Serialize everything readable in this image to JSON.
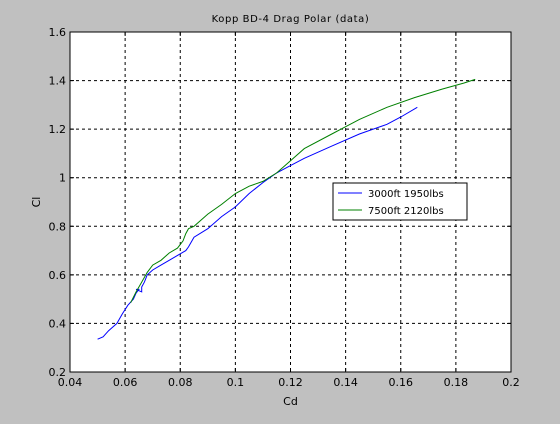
{
  "chart_data": {
    "type": "line",
    "title": "Kopp BD-4 Drag Polar (data)",
    "xlabel": "Cd",
    "ylabel": "Cl",
    "xlim": [
      0.04,
      0.2
    ],
    "ylim": [
      0.2,
      1.6
    ],
    "xticks": [
      0.04,
      0.06,
      0.08,
      0.1,
      0.12,
      0.14,
      0.16,
      0.18,
      0.2
    ],
    "xtick_labels": [
      "0.04",
      "0.06",
      "0.08",
      "0.1",
      "0.12",
      "0.14",
      "0.16",
      "0.18",
      "0.2"
    ],
    "yticks": [
      0.2,
      0.4,
      0.6,
      0.8,
      1.0,
      1.2,
      1.4,
      1.6
    ],
    "ytick_labels": [
      "0.2",
      "0.4",
      "0.6",
      "0.8",
      "1",
      "1.2",
      "1.4",
      "1.6"
    ],
    "grid": true,
    "grid_style": "dashed",
    "legend_position": "right",
    "background": "#c0c0c0",
    "axes_background": "#ffffff",
    "series": [
      {
        "name": "3000ft 1950lbs",
        "color": "#0000ff",
        "x": [
          0.05,
          0.052,
          0.054,
          0.057,
          0.059,
          0.061,
          0.063,
          0.064,
          0.065,
          0.064,
          0.066,
          0.066,
          0.067,
          0.068,
          0.07,
          0.073,
          0.076,
          0.079,
          0.082,
          0.083,
          0.085,
          0.09,
          0.095,
          0.1,
          0.105,
          0.11,
          0.115,
          0.12,
          0.125,
          0.135,
          0.145,
          0.155,
          0.16,
          0.166
        ],
        "y": [
          0.335,
          0.345,
          0.37,
          0.4,
          0.44,
          0.475,
          0.5,
          0.525,
          0.54,
          0.54,
          0.53,
          0.55,
          0.57,
          0.6,
          0.62,
          0.64,
          0.66,
          0.68,
          0.7,
          0.715,
          0.755,
          0.79,
          0.84,
          0.88,
          0.935,
          0.98,
          1.02,
          1.05,
          1.08,
          1.13,
          1.18,
          1.22,
          1.25,
          1.29
        ]
      },
      {
        "name": "7500ft 2120lbs",
        "color": "#008000",
        "x": [
          0.062,
          0.064,
          0.066,
          0.068,
          0.07,
          0.073,
          0.076,
          0.079,
          0.081,
          0.082,
          0.083,
          0.085,
          0.09,
          0.095,
          0.1,
          0.105,
          0.11,
          0.115,
          0.12,
          0.125,
          0.135,
          0.145,
          0.155,
          0.165,
          0.175,
          0.183,
          0.187
        ],
        "y": [
          0.485,
          0.53,
          0.57,
          0.61,
          0.64,
          0.66,
          0.69,
          0.71,
          0.74,
          0.77,
          0.79,
          0.8,
          0.85,
          0.89,
          0.935,
          0.965,
          0.985,
          1.02,
          1.07,
          1.12,
          1.18,
          1.24,
          1.29,
          1.33,
          1.365,
          1.39,
          1.405
        ]
      }
    ]
  }
}
